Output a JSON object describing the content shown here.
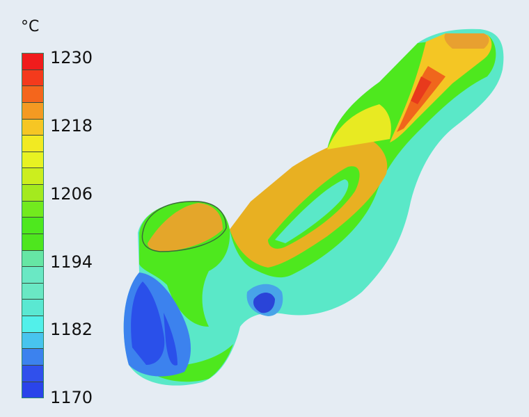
{
  "legend": {
    "unit": "°C",
    "min": 1170,
    "max": 1230,
    "step": 3,
    "tick_labels": [
      "1230",
      "1218",
      "1206",
      "1194",
      "1182",
      "1170"
    ],
    "band_colors_top_to_bottom": [
      "#f01c1c",
      "#f43a1c",
      "#f4661c",
      "#f49a22",
      "#f6c624",
      "#f2ea22",
      "#e8f222",
      "#ccee1e",
      "#a4ea1e",
      "#72ea1e",
      "#4ee81e",
      "#4ee61e",
      "#66e6a4",
      "#6ae8c4",
      "#6ae8c4",
      "#5ae8d2",
      "#52f0ea",
      "#48c4ee",
      "#3c82ee",
      "#3050ec",
      "#2a44ea"
    ]
  }
}
